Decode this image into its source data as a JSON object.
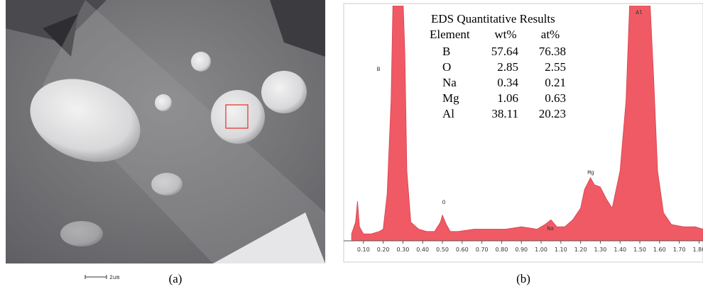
{
  "panel_a": {
    "scale_bar": "2um",
    "caption": "(a)"
  },
  "chart_data": {
    "type": "area",
    "x": [
      0.04,
      0.06,
      0.07,
      0.08,
      0.1,
      0.14,
      0.18,
      0.2,
      0.22,
      0.24,
      0.25,
      0.3,
      0.31,
      0.32,
      0.34,
      0.38,
      0.42,
      0.46,
      0.49,
      0.5,
      0.52,
      0.54,
      0.58,
      0.66,
      0.74,
      0.82,
      0.9,
      0.98,
      1.02,
      1.05,
      1.08,
      1.12,
      1.16,
      1.2,
      1.22,
      1.25,
      1.27,
      1.3,
      1.33,
      1.36,
      1.4,
      1.43,
      1.45,
      1.55,
      1.57,
      1.59,
      1.62,
      1.66,
      1.72,
      1.78,
      1.82
    ],
    "values": [
      3,
      8,
      17,
      6,
      3,
      3,
      4,
      5,
      20,
      60,
      105,
      105,
      80,
      30,
      8,
      5,
      4,
      4,
      8,
      11,
      7,
      4,
      4,
      5,
      5,
      5,
      6,
      5,
      7,
      9,
      6,
      6,
      9,
      14,
      22,
      27,
      24,
      23,
      18,
      14,
      30,
      60,
      105,
      105,
      70,
      30,
      12,
      7,
      6,
      6,
      5
    ],
    "color": "#f05a64",
    "xlim": [
      0,
      1.82
    ],
    "ylim": [
      0,
      100
    ],
    "xticks": [
      {
        "value": 0.1,
        "label": "0.10"
      },
      {
        "value": 0.2,
        "label": "0.20"
      },
      {
        "value": 0.3,
        "label": "0.30"
      },
      {
        "value": 0.4,
        "label": "0.40"
      },
      {
        "value": 0.5,
        "label": "0.50"
      },
      {
        "value": 0.6,
        "label": "0.60"
      },
      {
        "value": 0.7,
        "label": "0.70"
      },
      {
        "value": 0.8,
        "label": "0.80"
      },
      {
        "value": 0.9,
        "label": "0.90"
      },
      {
        "value": 1,
        "label": "1.00"
      },
      {
        "value": 1.1,
        "label": "1.10"
      },
      {
        "value": 1.2,
        "label": "1.20"
      },
      {
        "value": 1.3,
        "label": "1.30"
      },
      {
        "value": 1.4,
        "label": "1.40"
      },
      {
        "value": 1.5,
        "label": "1.50"
      },
      {
        "value": 1.6,
        "label": "1.60"
      },
      {
        "value": 1.7,
        "label": "1.70"
      },
      {
        "value": 1.8,
        "label": "1.80"
      }
    ],
    "peak_labels": [
      "B",
      "O",
      "Na",
      "Mg",
      "Al"
    ]
  },
  "eds_table": {
    "title": "EDS Quantitative Results",
    "columns": [
      "Element",
      "wt%",
      "at%"
    ],
    "rows": [
      [
        "B",
        57.64,
        76.38
      ],
      [
        "O",
        2.85,
        2.55
      ],
      [
        "Na",
        0.34,
        0.21
      ],
      [
        "Mg",
        1.06,
        0.63
      ],
      [
        "Al",
        38.11,
        20.23
      ]
    ]
  },
  "panel_b": {
    "caption": "(b)"
  }
}
